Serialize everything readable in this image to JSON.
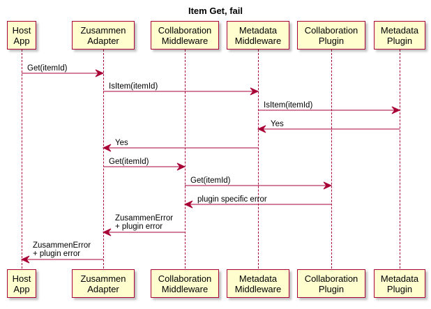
{
  "title": "Item Get, fail",
  "participants": [
    {
      "id": "host",
      "label": "Host\nApp"
    },
    {
      "id": "adapter",
      "label": "Zusammen\nAdapter"
    },
    {
      "id": "collab_mw",
      "label": "Collaboration\nMiddleware"
    },
    {
      "id": "meta_mw",
      "label": "Metadata\nMiddleware"
    },
    {
      "id": "collab_plugin",
      "label": "Collaboration\nPlugin"
    },
    {
      "id": "meta_plugin",
      "label": "Metadata\nPlugin"
    }
  ],
  "messages": [
    {
      "from": "host",
      "to": "adapter",
      "text": "Get(itemId)"
    },
    {
      "from": "adapter",
      "to": "meta_mw",
      "text": "IsItem(itemId)"
    },
    {
      "from": "meta_mw",
      "to": "meta_plugin",
      "text": "IsItem(itemId)"
    },
    {
      "from": "meta_plugin",
      "to": "meta_mw",
      "text": "Yes"
    },
    {
      "from": "meta_mw",
      "to": "adapter",
      "text": "Yes"
    },
    {
      "from": "adapter",
      "to": "collab_mw",
      "text": "Get(itemId)"
    },
    {
      "from": "collab_mw",
      "to": "collab_plugin",
      "text": "Get(itemId)"
    },
    {
      "from": "collab_plugin",
      "to": "collab_mw",
      "text": "plugin specific error"
    },
    {
      "from": "collab_mw",
      "to": "adapter",
      "text": "ZusammenError\n+ plugin error"
    },
    {
      "from": "adapter",
      "to": "host",
      "text": "ZusammenError\n+ plugin error"
    }
  ],
  "colors": {
    "line": "#A80036",
    "box_fill": "#FEFECE"
  }
}
